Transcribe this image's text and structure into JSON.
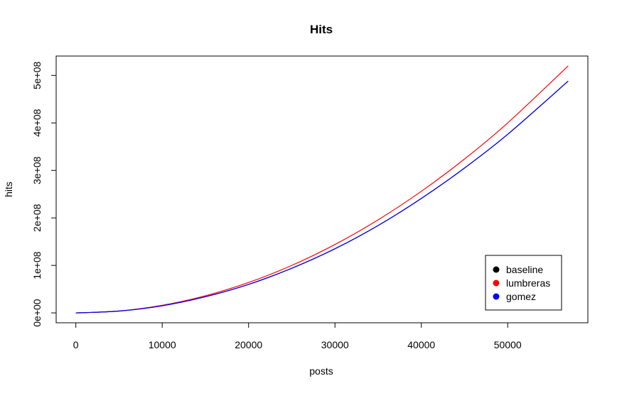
{
  "chart_data": {
    "type": "line",
    "title": "Hits",
    "xlabel": "posts",
    "ylabel": "hits",
    "xlim": [
      -2280,
      59280
    ],
    "ylim": [
      -20800000,
      540800000
    ],
    "x_ticks": [
      0,
      10000,
      20000,
      30000,
      40000,
      50000
    ],
    "x_tick_labels": [
      "0",
      "10000",
      "20000",
      "30000",
      "40000",
      "50000"
    ],
    "y_ticks": [
      0,
      100000000,
      200000000,
      300000000,
      400000000,
      500000000
    ],
    "y_tick_labels": [
      "0e+00",
      "1e+08",
      "2e+08",
      "3e+08",
      "4e+08",
      "5e+08"
    ],
    "grid": false,
    "legend": {
      "placement": "bottom-right"
    },
    "x": [
      0,
      5000,
      10000,
      15000,
      20000,
      25000,
      30000,
      35000,
      40000,
      45000,
      50000,
      57000
    ],
    "series": [
      {
        "name": "baseline",
        "color": "#000000",
        "values": [
          0,
          3800000,
          15000000,
          34000000,
          60000000,
          94000000,
          135000000,
          184000000,
          241000000,
          305000000,
          376000000,
          488000000
        ]
      },
      {
        "name": "lumbreras",
        "color": "#ff0000",
        "values": [
          0,
          4000000,
          16000000,
          36000000,
          64000000,
          100000000,
          144000000,
          196000000,
          256000000,
          324000000,
          400000000,
          520000000
        ]
      },
      {
        "name": "gomez",
        "color": "#0000ff",
        "values": [
          0,
          3800000,
          15000000,
          34000000,
          60000000,
          94000000,
          135000000,
          184000000,
          241000000,
          305000000,
          376000000,
          488000000
        ]
      }
    ]
  }
}
